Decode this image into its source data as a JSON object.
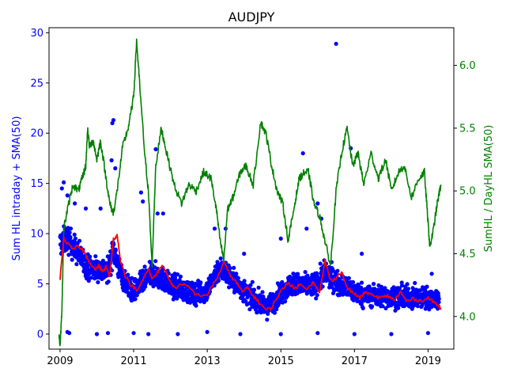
{
  "chart_data": {
    "type": "scatter",
    "title": "AUDJPY",
    "xlabel": "",
    "ylabel_left": "Sum HL intraday + SMA(50)",
    "ylabel_right": "SumHL / DayHL SMA(50)",
    "colors": {
      "scatter": "#0000ff",
      "sma": "#ff0000",
      "ratio": "#008000",
      "left_axis_text": "#0000ff",
      "right_axis_text": "#008000",
      "axes": "#000000"
    },
    "xlim": [
      2008.7,
      2019.7
    ],
    "x_ticks": [
      2009,
      2011,
      2013,
      2015,
      2017,
      2019
    ],
    "x_tick_labels": [
      "2009",
      "2011",
      "2013",
      "2015",
      "2017",
      "2019"
    ],
    "ylim_left": [
      -1.5,
      30.5
    ],
    "y_ticks_left": [
      0,
      5,
      10,
      15,
      20,
      25,
      30
    ],
    "y_tick_labels_left": [
      "0",
      "5",
      "10",
      "15",
      "20",
      "25",
      "30"
    ],
    "ylim_right": [
      3.74,
      6.3
    ],
    "y_ticks_right": [
      4.0,
      4.5,
      5.0,
      5.5,
      6.0
    ],
    "y_tick_labels_right": [
      "4.0",
      "4.5",
      "5.0",
      "5.5",
      "6.0"
    ],
    "series": [
      {
        "name": "Sum HL intraday",
        "kind": "scatter",
        "axis": "left",
        "base": [
          [
            2009.0,
            9.0
          ],
          [
            2009.2,
            9.5
          ],
          [
            2009.5,
            8.0
          ],
          [
            2009.8,
            6.5
          ],
          [
            2010.0,
            6.5
          ],
          [
            2010.3,
            6.2
          ],
          [
            2010.45,
            8.5
          ],
          [
            2010.6,
            6.5
          ],
          [
            2010.8,
            5.0
          ],
          [
            2011.0,
            4.2
          ],
          [
            2011.2,
            5.0
          ],
          [
            2011.5,
            6.0
          ],
          [
            2011.8,
            5.5
          ],
          [
            2012.0,
            4.8
          ],
          [
            2012.3,
            4.5
          ],
          [
            2012.6,
            4.0
          ],
          [
            2013.0,
            4.3
          ],
          [
            2013.3,
            6.5
          ],
          [
            2013.5,
            6.2
          ],
          [
            2013.8,
            5.0
          ],
          [
            2014.0,
            4.2
          ],
          [
            2014.3,
            3.5
          ],
          [
            2014.6,
            2.6
          ],
          [
            2014.8,
            3.2
          ],
          [
            2015.0,
            4.2
          ],
          [
            2015.3,
            5.0
          ],
          [
            2015.6,
            4.8
          ],
          [
            2016.0,
            5.0
          ],
          [
            2016.2,
            6.2
          ],
          [
            2016.4,
            5.5
          ],
          [
            2016.7,
            4.8
          ],
          [
            2017.0,
            4.2
          ],
          [
            2017.3,
            3.8
          ],
          [
            2017.6,
            3.8
          ],
          [
            2018.0,
            3.7
          ],
          [
            2018.3,
            3.7
          ],
          [
            2018.6,
            3.6
          ],
          [
            2019.0,
            3.6
          ],
          [
            2019.3,
            3.5
          ]
        ],
        "spread": 1.4,
        "outliers": [
          [
            2009.05,
            14.5
          ],
          [
            2009.1,
            15.1
          ],
          [
            2009.2,
            13.8
          ],
          [
            2009.4,
            13.0
          ],
          [
            2009.7,
            12.5
          ],
          [
            2010.1,
            12.5
          ],
          [
            2010.4,
            17.3
          ],
          [
            2010.42,
            21.0
          ],
          [
            2010.45,
            21.3
          ],
          [
            2010.5,
            16.5
          ],
          [
            2011.2,
            14.1
          ],
          [
            2011.25,
            13.2
          ],
          [
            2011.6,
            18.4
          ],
          [
            2011.65,
            12.0
          ],
          [
            2011.8,
            12.0
          ],
          [
            2013.2,
            10.5
          ],
          [
            2013.5,
            10.5
          ],
          [
            2014.0,
            8.0
          ],
          [
            2015.0,
            9.5
          ],
          [
            2015.6,
            18.0
          ],
          [
            2015.7,
            10.5
          ],
          [
            2016.0,
            13.0
          ],
          [
            2016.1,
            11.5
          ],
          [
            2016.5,
            28.9
          ],
          [
            2016.9,
            18.5
          ],
          [
            2017.2,
            8.0
          ],
          [
            2019.1,
            6.0
          ],
          [
            2009.2,
            0.2
          ],
          [
            2009.25,
            0.1
          ],
          [
            2010.0,
            0.0
          ],
          [
            2010.3,
            0.1
          ],
          [
            2011.0,
            0.1
          ],
          [
            2011.4,
            0.0
          ],
          [
            2012.2,
            0.0
          ],
          [
            2013.0,
            0.2
          ],
          [
            2013.9,
            0.0
          ],
          [
            2015.0,
            0.0
          ],
          [
            2016.0,
            0.1
          ],
          [
            2017.0,
            0.0
          ],
          [
            2018.0,
            0.0
          ],
          [
            2019.0,
            0.1
          ]
        ]
      },
      {
        "name": "SMA(50)",
        "kind": "line",
        "axis": "left",
        "points": [
          [
            2009.0,
            5.5
          ],
          [
            2009.1,
            9.5
          ],
          [
            2009.2,
            9.0
          ],
          [
            2009.35,
            8.4
          ],
          [
            2009.5,
            8.8
          ],
          [
            2009.65,
            8.2
          ],
          [
            2009.8,
            7.2
          ],
          [
            2009.95,
            6.4
          ],
          [
            2010.05,
            6.8
          ],
          [
            2010.15,
            6.2
          ],
          [
            2010.25,
            6.7
          ],
          [
            2010.35,
            5.7
          ],
          [
            2010.45,
            9.5
          ],
          [
            2010.55,
            9.8
          ],
          [
            2010.65,
            7.2
          ],
          [
            2010.8,
            5.5
          ],
          [
            2011.0,
            4.6
          ],
          [
            2011.1,
            4.3
          ],
          [
            2011.25,
            5.4
          ],
          [
            2011.4,
            6.5
          ],
          [
            2011.5,
            5.5
          ],
          [
            2011.65,
            6.2
          ],
          [
            2011.8,
            6.8
          ],
          [
            2011.95,
            5.6
          ],
          [
            2012.1,
            4.6
          ],
          [
            2012.3,
            4.9
          ],
          [
            2012.5,
            4.7
          ],
          [
            2012.7,
            3.9
          ],
          [
            2013.0,
            3.9
          ],
          [
            2013.15,
            4.9
          ],
          [
            2013.3,
            5.8
          ],
          [
            2013.45,
            7.2
          ],
          [
            2013.6,
            6.0
          ],
          [
            2013.8,
            5.1
          ],
          [
            2013.95,
            4.2
          ],
          [
            2014.1,
            4.6
          ],
          [
            2014.25,
            3.8
          ],
          [
            2014.4,
            3.2
          ],
          [
            2014.6,
            2.4
          ],
          [
            2014.75,
            2.6
          ],
          [
            2014.9,
            3.7
          ],
          [
            2015.05,
            4.5
          ],
          [
            2015.2,
            5.2
          ],
          [
            2015.35,
            4.5
          ],
          [
            2015.5,
            4.9
          ],
          [
            2015.7,
            4.6
          ],
          [
            2015.9,
            5.2
          ],
          [
            2016.05,
            4.0
          ],
          [
            2016.2,
            7.3
          ],
          [
            2016.35,
            5.3
          ],
          [
            2016.5,
            5.6
          ],
          [
            2016.65,
            6.2
          ],
          [
            2016.8,
            4.6
          ],
          [
            2017.0,
            4.0
          ],
          [
            2017.15,
            3.6
          ],
          [
            2017.3,
            4.2
          ],
          [
            2017.5,
            3.8
          ],
          [
            2017.7,
            3.6
          ],
          [
            2017.9,
            3.8
          ],
          [
            2018.1,
            3.4
          ],
          [
            2018.25,
            4.2
          ],
          [
            2018.4,
            3.3
          ],
          [
            2018.6,
            3.5
          ],
          [
            2018.8,
            3.3
          ],
          [
            2019.0,
            3.6
          ],
          [
            2019.15,
            3.2
          ],
          [
            2019.3,
            2.8
          ],
          [
            2019.35,
            2.6
          ]
        ]
      },
      {
        "name": "SumHL / DayHL SMA(50)",
        "kind": "line",
        "axis": "right",
        "points": [
          [
            2008.97,
            3.85
          ],
          [
            2009.0,
            3.78
          ],
          [
            2009.05,
            4.05
          ],
          [
            2009.1,
            4.7
          ],
          [
            2009.2,
            4.85
          ],
          [
            2009.35,
            5.05
          ],
          [
            2009.5,
            5.0
          ],
          [
            2009.6,
            5.1
          ],
          [
            2009.7,
            5.2
          ],
          [
            2009.75,
            5.5
          ],
          [
            2009.8,
            5.35
          ],
          [
            2009.9,
            5.4
          ],
          [
            2010.0,
            5.25
          ],
          [
            2010.1,
            5.4
          ],
          [
            2010.25,
            5.1
          ],
          [
            2010.35,
            4.9
          ],
          [
            2010.45,
            4.82
          ],
          [
            2010.55,
            5.0
          ],
          [
            2010.7,
            5.35
          ],
          [
            2010.85,
            5.5
          ],
          [
            2011.0,
            5.75
          ],
          [
            2011.08,
            6.2
          ],
          [
            2011.15,
            5.9
          ],
          [
            2011.3,
            5.3
          ],
          [
            2011.4,
            5.0
          ],
          [
            2011.5,
            4.4
          ],
          [
            2011.6,
            5.2
          ],
          [
            2011.75,
            5.5
          ],
          [
            2011.9,
            5.3
          ],
          [
            2012.1,
            5.05
          ],
          [
            2012.3,
            4.9
          ],
          [
            2012.5,
            5.05
          ],
          [
            2012.7,
            5.0
          ],
          [
            2012.9,
            5.15
          ],
          [
            2013.1,
            5.1
          ],
          [
            2013.25,
            4.85
          ],
          [
            2013.35,
            4.6
          ],
          [
            2013.45,
            4.45
          ],
          [
            2013.55,
            4.85
          ],
          [
            2013.7,
            4.95
          ],
          [
            2013.9,
            5.15
          ],
          [
            2014.05,
            5.2
          ],
          [
            2014.25,
            5.05
          ],
          [
            2014.45,
            5.55
          ],
          [
            2014.6,
            5.45
          ],
          [
            2014.75,
            5.2
          ],
          [
            2014.9,
            5.0
          ],
          [
            2015.05,
            4.9
          ],
          [
            2015.2,
            4.6
          ],
          [
            2015.35,
            4.85
          ],
          [
            2015.5,
            5.1
          ],
          [
            2015.65,
            5.15
          ],
          [
            2015.75,
            5.15
          ],
          [
            2015.9,
            4.9
          ],
          [
            2016.05,
            4.8
          ],
          [
            2016.2,
            4.6
          ],
          [
            2016.35,
            4.4
          ],
          [
            2016.5,
            5.0
          ],
          [
            2016.65,
            5.3
          ],
          [
            2016.8,
            5.5
          ],
          [
            2016.95,
            5.2
          ],
          [
            2017.1,
            5.3
          ],
          [
            2017.25,
            5.05
          ],
          [
            2017.45,
            5.3
          ],
          [
            2017.65,
            5.1
          ],
          [
            2017.85,
            5.25
          ],
          [
            2018.0,
            5.0
          ],
          [
            2018.2,
            5.15
          ],
          [
            2018.35,
            5.2
          ],
          [
            2018.55,
            4.95
          ],
          [
            2018.75,
            5.1
          ],
          [
            2018.9,
            5.15
          ],
          [
            2019.0,
            4.75
          ],
          [
            2019.05,
            4.55
          ],
          [
            2019.15,
            4.7
          ],
          [
            2019.25,
            4.9
          ],
          [
            2019.35,
            5.05
          ]
        ]
      }
    ]
  }
}
